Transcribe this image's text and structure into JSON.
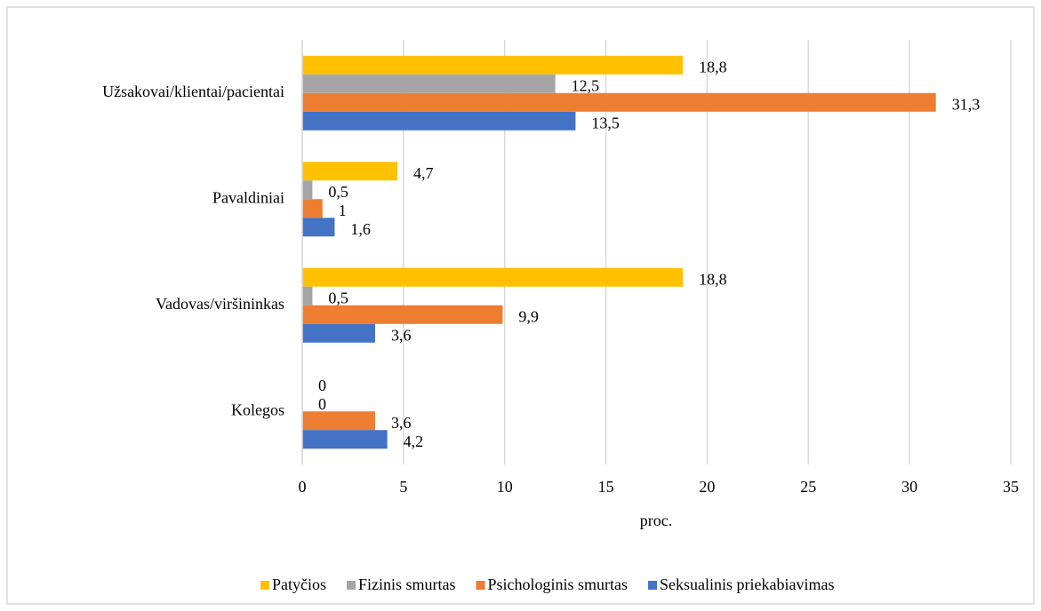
{
  "chart_data": {
    "type": "bar",
    "orientation": "horizontal",
    "categories": [
      "Užsakovai/klientai/pacientai",
      "Pavaldiniai",
      "Vadovas/viršininkas",
      "Kolegos"
    ],
    "series": [
      {
        "name": "Patyčios",
        "color": "#ffc000",
        "values": [
          18.8,
          4.7,
          18.8,
          0
        ],
        "value_labels": [
          "18,8",
          "4,7",
          "18,8",
          "0"
        ]
      },
      {
        "name": "Fizinis smurtas",
        "color": "#a5a5a5",
        "values": [
          12.5,
          0.5,
          0.5,
          0
        ],
        "value_labels": [
          "12,5",
          "0,5",
          "0,5",
          "0"
        ]
      },
      {
        "name": "Psichologinis smurtas",
        "color": "#ed7d31",
        "values": [
          31.3,
          1,
          9.9,
          3.6
        ],
        "value_labels": [
          "31,3",
          "1",
          "9,9",
          "3,6"
        ]
      },
      {
        "name": "Seksualinis priekabiavimas",
        "color": "#4472c4",
        "values": [
          13.5,
          1.6,
          3.6,
          4.2
        ],
        "value_labels": [
          "13,5",
          "1,6",
          "3,6",
          "4,2"
        ]
      }
    ],
    "xlabel": "proc.",
    "xlim": [
      0,
      35
    ],
    "xticks": [
      0,
      5,
      10,
      15,
      20,
      25,
      30,
      35
    ],
    "grid": true,
    "legend": "bottom"
  }
}
